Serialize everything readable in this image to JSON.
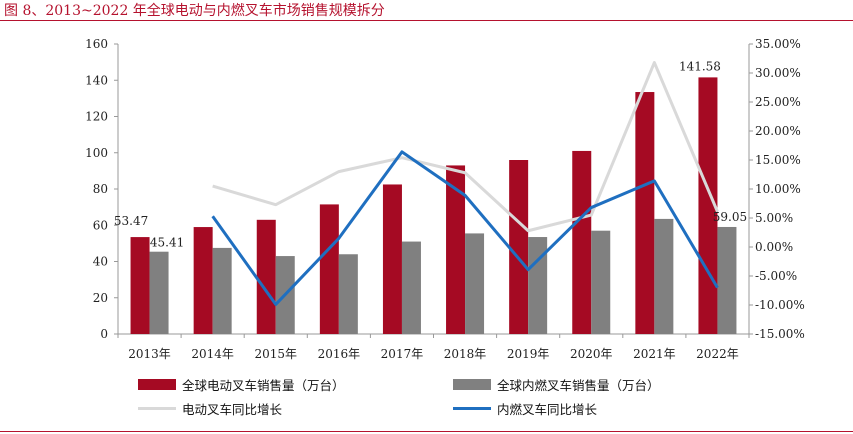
{
  "figure": {
    "title": "图 8、2013~2022 年全球电动与内燃叉车市场销售规模拆分"
  },
  "colors": {
    "title": "#b5122e",
    "electric_bar": "#a50a23",
    "ice_bar": "#808080",
    "electric_line": "#d9d9d9",
    "ice_line": "#1f6fc0"
  },
  "chart_data": {
    "type": "bar",
    "categories": [
      "2013年",
      "2014年",
      "2015年",
      "2016年",
      "2017年",
      "2018年",
      "2019年",
      "2020年",
      "2021年",
      "2022年"
    ],
    "series": [
      {
        "name": "全球电动叉车销售量（万台）",
        "kind": "bar",
        "axis": "left",
        "values": [
          53.47,
          59,
          63,
          71.5,
          82.5,
          93,
          96,
          101,
          133.5,
          141.58
        ]
      },
      {
        "name": "全球内燃叉车销售量（万台）",
        "kind": "bar",
        "axis": "left",
        "values": [
          45.41,
          47.5,
          43,
          44,
          51,
          55.5,
          53.5,
          57,
          63.5,
          59.05
        ]
      },
      {
        "name": "电动叉车同比增长",
        "kind": "line",
        "axis": "right",
        "values": [
          null,
          10.5,
          7.3,
          13.0,
          15.4,
          12.8,
          2.8,
          5.5,
          31.8,
          6.1
        ]
      },
      {
        "name": "内燃叉车同比增长",
        "kind": "line",
        "axis": "right",
        "values": [
          null,
          5.3,
          -9.9,
          1.5,
          16.4,
          8.9,
          -3.9,
          6.8,
          11.4,
          -7.0
        ]
      }
    ],
    "data_labels": [
      {
        "series": 0,
        "index": 0,
        "text": "53.47"
      },
      {
        "series": 1,
        "index": 0,
        "text": "45.41"
      },
      {
        "series": 0,
        "index": 9,
        "text": "141.58"
      },
      {
        "series": 1,
        "index": 9,
        "text": "59.05"
      }
    ],
    "y_left": {
      "lim": [
        0,
        160
      ],
      "ticks": [
        "0",
        "20",
        "40",
        "60",
        "80",
        "100",
        "120",
        "140",
        "160"
      ]
    },
    "y_right": {
      "lim": [
        -15,
        35
      ],
      "ticks": [
        "-15.00%",
        "-10.00%",
        "-5.00%",
        "0.00%",
        "5.00%",
        "10.00%",
        "15.00%",
        "20.00%",
        "25.00%",
        "30.00%",
        "35.00%"
      ]
    },
    "grid": false,
    "legend_position": "bottom"
  }
}
